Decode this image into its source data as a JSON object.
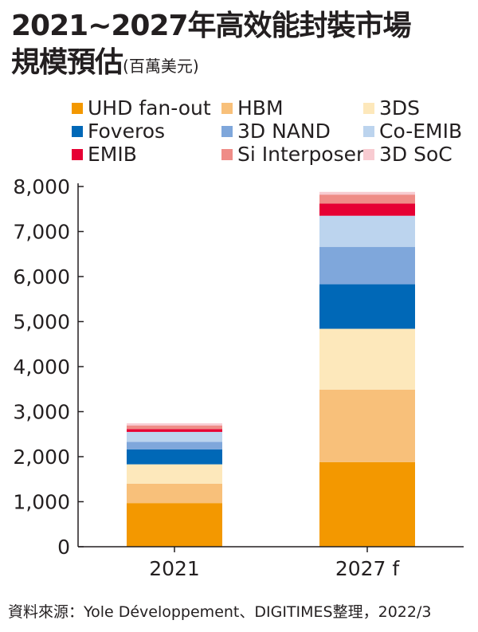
{
  "title": {
    "line1": "2021~2027年高效能封裝市場",
    "line2": "規模預估",
    "unit": "(百萬美元)"
  },
  "source": "資料來源：Yole Développement、DIGITIMES整理，2022/3",
  "chart_data": {
    "type": "bar",
    "stacked": true,
    "categories": [
      "2021",
      "2027 f"
    ],
    "ylim": [
      0,
      8000
    ],
    "yticks": [
      "0",
      "1,000",
      "2,000",
      "3,000",
      "4,000",
      "5,000",
      "6,000",
      "7,000",
      "8,000"
    ],
    "ytick_values": [
      0,
      1000,
      2000,
      3000,
      4000,
      5000,
      6000,
      7000,
      8000
    ],
    "grid": false,
    "legend_position": "top",
    "series": [
      {
        "name": "UHD fan-out",
        "color": "#f39800",
        "values": [
          970,
          1880
        ]
      },
      {
        "name": "HBM",
        "color": "#f8c07a",
        "values": [
          430,
          1610
        ]
      },
      {
        "name": "3DS",
        "color": "#fde8bb",
        "values": [
          430,
          1350
        ]
      },
      {
        "name": "Foveros",
        "color": "#0068b7",
        "values": [
          330,
          990
        ]
      },
      {
        "name": "3D NAND",
        "color": "#7fa7db",
        "values": [
          170,
          830
        ]
      },
      {
        "name": "Co-EMIB",
        "color": "#bcd4ee",
        "values": [
          220,
          690
        ]
      },
      {
        "name": "EMIB",
        "color": "#e60033",
        "values": [
          60,
          270
        ]
      },
      {
        "name": "Si Interposer",
        "color": "#ef8c87",
        "values": [
          80,
          200
        ]
      },
      {
        "name": "3D SoC",
        "color": "#f8cbd1",
        "values": [
          50,
          60
        ]
      }
    ]
  }
}
